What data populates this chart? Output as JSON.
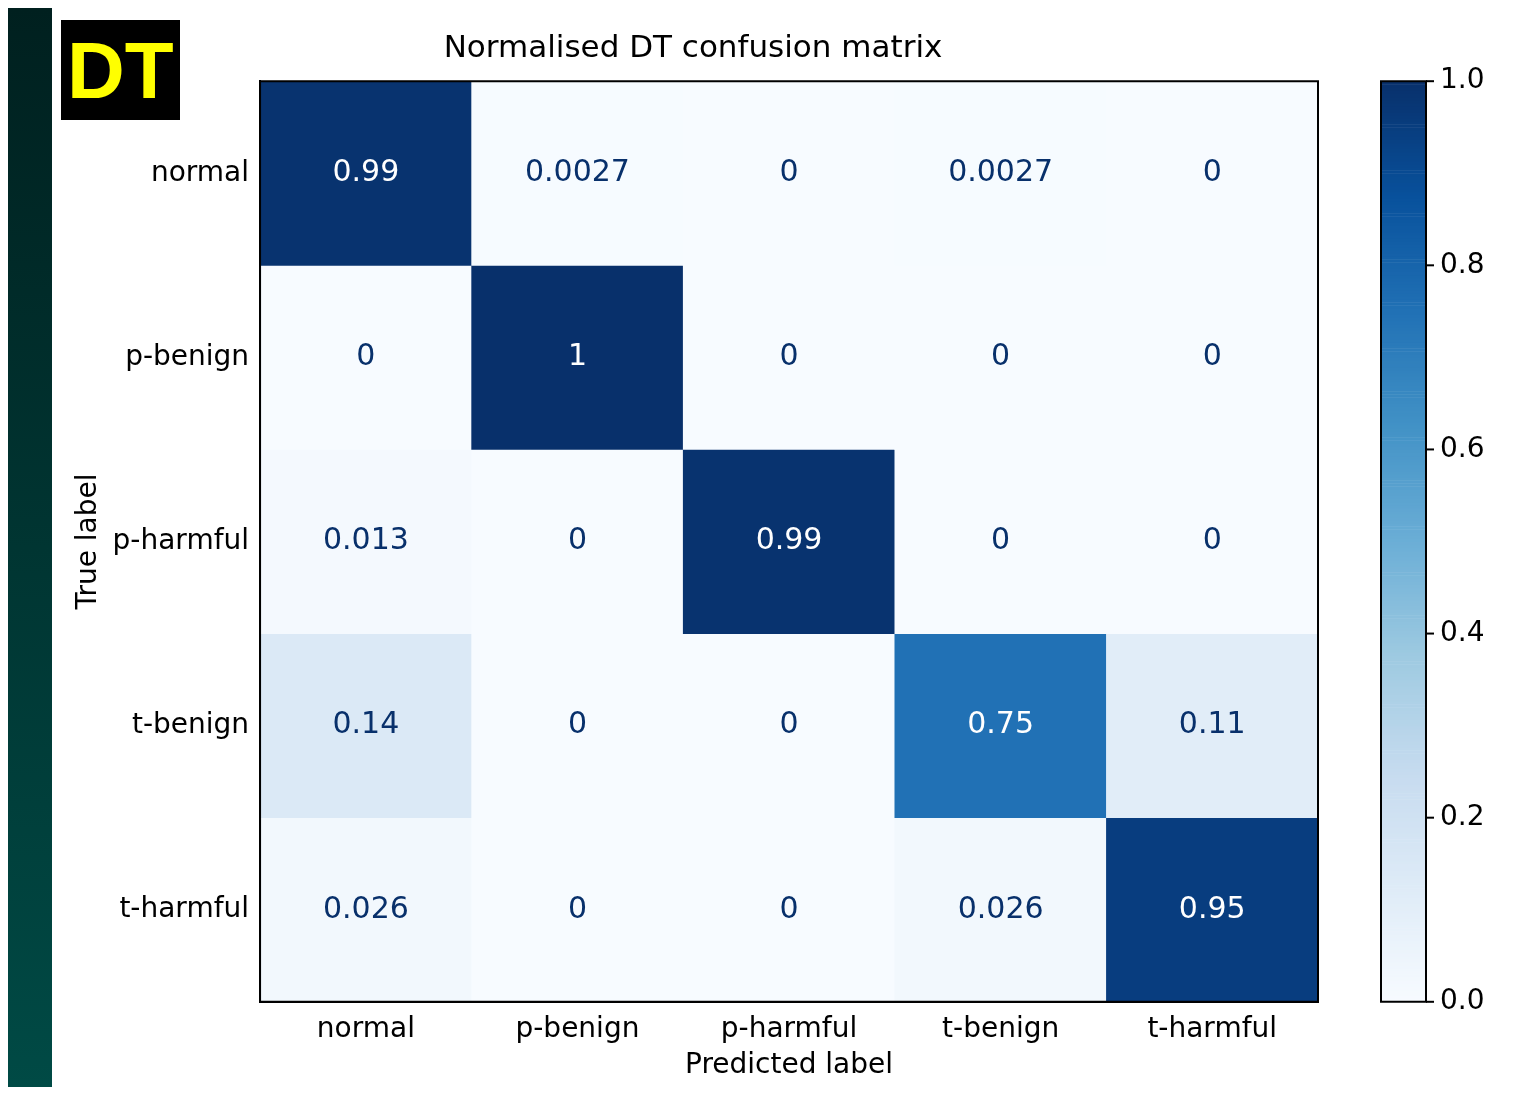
{
  "chart_data": {
    "type": "heatmap",
    "title": "Normalised DT confusion matrix",
    "xlabel": "Predicted label",
    "ylabel": "True label",
    "categories": [
      "normal",
      "p-benign",
      "p-harmful",
      "t-benign",
      "t-harmful"
    ],
    "y_categories": [
      "normal",
      "p-benign",
      "p-harmful",
      "t-benign",
      "t-harmful"
    ],
    "cells": [
      [
        0.99,
        0.0027,
        0,
        0.0027,
        0
      ],
      [
        0,
        1,
        0,
        0,
        0
      ],
      [
        0.013,
        0,
        0.99,
        0,
        0
      ],
      [
        0.14,
        0,
        0,
        0.75,
        0.11
      ],
      [
        0.026,
        0,
        0,
        0.026,
        0.95
      ]
    ],
    "clim": [
      0,
      1
    ],
    "cticks": [
      {
        "value": 0,
        "label": "0.0"
      },
      {
        "value": 0.2,
        "label": "0.2"
      },
      {
        "value": 0.4,
        "label": "0.4"
      },
      {
        "value": 0.6,
        "label": "0.6"
      },
      {
        "value": 0.8,
        "label": "0.8"
      },
      {
        "value": 1,
        "label": "1.0"
      }
    ],
    "data_labels": true,
    "annotations": [
      "DT"
    ]
  }
}
